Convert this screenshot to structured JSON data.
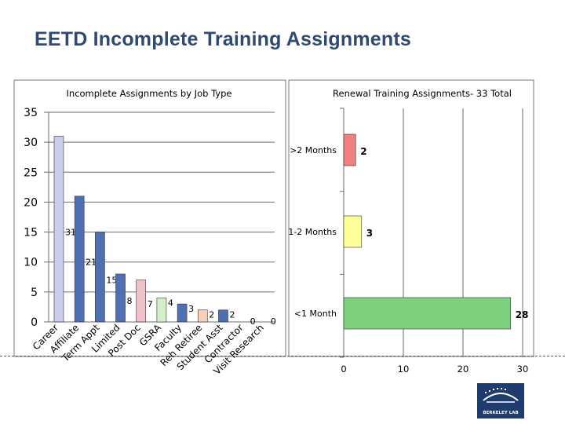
{
  "slide": {
    "title": "EETD Incomplete Training Assignments"
  },
  "logo": {
    "text": "BERKELEY LAB",
    "color": "#1f3c6e"
  },
  "chart_data": [
    {
      "type": "bar",
      "title": "Incomplete Assignments by Job Type",
      "categories": [
        "Career",
        "Affiliate",
        "Term Appt",
        "Limited",
        "Post Doc",
        "GSRA",
        "Faculty",
        "Reh Retiree",
        "Student Asst",
        "Contractor",
        "Visit Research"
      ],
      "values": [
        31,
        21,
        15,
        8,
        7,
        4,
        3,
        2,
        2,
        0,
        0
      ],
      "colors": [
        "#ccccee",
        "#4f6fb3",
        "#4f6fb3",
        "#4f6fb3",
        "#f0c0c8",
        "#d4f0c8",
        "#4f6fb3",
        "#f6d0b8",
        "#4f6fb3",
        "#4f6fb3",
        "#4f6fb3"
      ],
      "yticks": [
        0,
        5,
        10,
        15,
        20,
        25,
        30,
        35
      ],
      "ylim": [
        0,
        35
      ],
      "grid": true
    },
    {
      "type": "bar",
      "orientation": "horizontal",
      "title": "Renewal Training Assignments- 33 Total",
      "categories": [
        ">2 Months",
        "1-2 Months",
        "<1 Month"
      ],
      "values": [
        2,
        3,
        28
      ],
      "colors": [
        "#f08080",
        "#ffff99",
        "#7ed07e"
      ],
      "xticks": [
        0,
        10,
        20,
        30
      ],
      "xlim": [
        0,
        30
      ],
      "grid": true
    }
  ]
}
